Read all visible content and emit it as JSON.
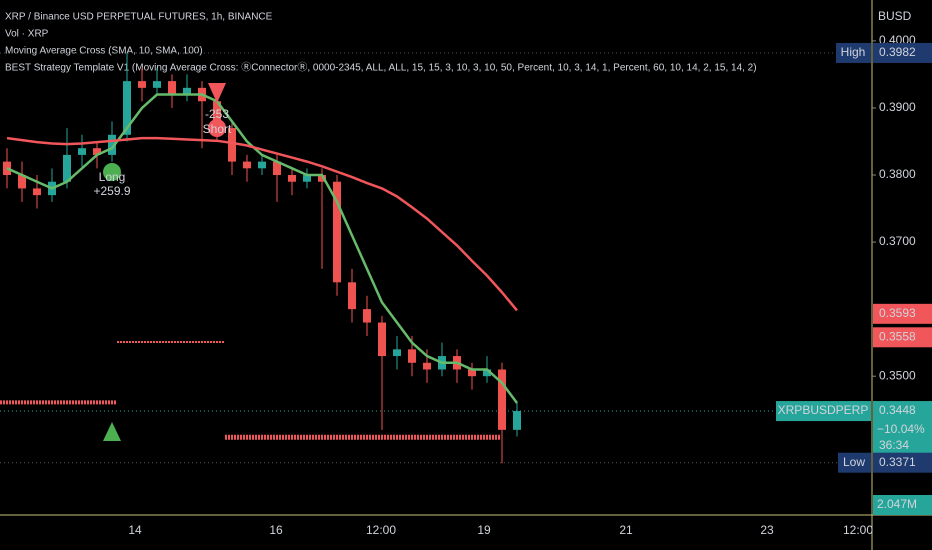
{
  "header": {
    "symbol": "XRP / Binance USD PERPETUAL FUTURES, 1h, BINANCE",
    "volume": "Vol · XRP",
    "ma_study": "Moving Average Cross (SMA, 10, SMA, 100)",
    "strategy": "BEST Strategy Template V1 (Moving Average Cross: ⓇConnectorⓇ, 0000-2345, ALL, ALL, 15, 15, 3, 10, 3, 10, 50, Percent, 10, 3, 14, 1, Percent, 60, 10, 14, 2, 15, 14, 2)"
  },
  "chart_data": {
    "type": "candlestick",
    "currency": "BUSD",
    "candles": [
      [
        0.382,
        0.384,
        0.378,
        0.38
      ],
      [
        0.38,
        0.382,
        0.376,
        0.378
      ],
      [
        0.378,
        0.38,
        0.375,
        0.377
      ],
      [
        0.377,
        0.381,
        0.376,
        0.379
      ],
      [
        0.379,
        0.387,
        0.378,
        0.383
      ],
      [
        0.383,
        0.386,
        0.381,
        0.384
      ],
      [
        0.384,
        0.385,
        0.381,
        0.383
      ],
      [
        0.383,
        0.388,
        0.382,
        0.386
      ],
      [
        0.386,
        0.3982,
        0.385,
        0.394
      ],
      [
        0.394,
        0.396,
        0.391,
        0.393
      ],
      [
        0.393,
        0.396,
        0.392,
        0.394
      ],
      [
        0.394,
        0.395,
        0.39,
        0.392
      ],
      [
        0.392,
        0.395,
        0.391,
        0.393
      ],
      [
        0.393,
        0.394,
        0.384,
        0.391
      ],
      [
        0.391,
        0.392,
        0.385,
        0.387
      ],
      [
        0.387,
        0.388,
        0.38,
        0.382
      ],
      [
        0.382,
        0.383,
        0.379,
        0.381
      ],
      [
        0.381,
        0.383,
        0.38,
        0.382
      ],
      [
        0.382,
        0.383,
        0.376,
        0.38
      ],
      [
        0.38,
        0.381,
        0.377,
        0.379
      ],
      [
        0.379,
        0.381,
        0.378,
        0.38
      ],
      [
        0.38,
        0.381,
        0.366,
        0.379
      ],
      [
        0.379,
        0.38,
        0.362,
        0.364
      ],
      [
        0.364,
        0.366,
        0.358,
        0.36
      ],
      [
        0.36,
        0.362,
        0.356,
        0.358
      ],
      [
        0.358,
        0.359,
        0.342,
        0.353
      ],
      [
        0.353,
        0.356,
        0.351,
        0.354
      ],
      [
        0.354,
        0.356,
        0.35,
        0.352
      ],
      [
        0.352,
        0.354,
        0.349,
        0.351
      ],
      [
        0.351,
        0.355,
        0.35,
        0.353
      ],
      [
        0.353,
        0.354,
        0.349,
        0.351
      ],
      [
        0.351,
        0.352,
        0.348,
        0.35
      ],
      [
        0.35,
        0.353,
        0.349,
        0.351
      ],
      [
        0.351,
        0.352,
        0.337,
        0.342
      ],
      [
        0.342,
        0.346,
        0.341,
        0.3448
      ]
    ],
    "up_color": "#26a69a",
    "down_color": "#ef5350",
    "series": [
      {
        "color": "#66bb6a",
        "values": [
          0.381,
          0.38,
          0.379,
          0.378,
          0.379,
          0.381,
          0.383,
          0.384,
          0.387,
          0.39,
          0.392,
          0.392,
          0.392,
          0.392,
          0.391,
          0.388,
          0.385,
          0.383,
          0.382,
          0.381,
          0.38,
          0.38,
          0.376,
          0.371,
          0.366,
          0.361,
          0.358,
          0.355,
          0.353,
          0.352,
          0.352,
          0.351,
          0.351,
          0.349,
          0.346
        ]
      },
      {
        "color": "#f0565a",
        "values": [
          0.3855,
          0.3852,
          0.3849,
          0.3847,
          0.3846,
          0.3847,
          0.3849,
          0.3851,
          0.3853,
          0.3855,
          0.3855,
          0.3854,
          0.3853,
          0.3852,
          0.3851,
          0.3848,
          0.3844,
          0.3838,
          0.3832,
          0.3826,
          0.382,
          0.3813,
          0.3805,
          0.3797,
          0.3788,
          0.378,
          0.3768,
          0.3752,
          0.3735,
          0.3715,
          0.3695,
          0.3672,
          0.365,
          0.3625,
          0.3598
        ]
      }
    ],
    "levels": [
      0.3461,
      0.3551,
      0.3409
    ],
    "signals": [
      {
        "label": "Long",
        "pnl": "+259.9"
      },
      {
        "label": "Short",
        "pnl": "-253"
      }
    ],
    "ylim": [
      0.3293,
      0.4061
    ],
    "yticks": [
      {
        "value": 0.4,
        "label": "0.4000"
      },
      {
        "value": 0.39,
        "label": "0.3900"
      },
      {
        "value": 0.38,
        "label": "0.3800"
      },
      {
        "value": 0.37,
        "label": "0.3700"
      },
      {
        "value": 0.35,
        "label": "0.3500"
      }
    ],
    "xtick_labels": [
      "14",
      "16",
      "12:00",
      "19",
      "21",
      "23",
      "12:00"
    ],
    "price_labels": {
      "high": {
        "name": "High",
        "value": 0.3982,
        "label": "0.3982"
      },
      "ma": {
        "value": 0.3593,
        "label": "0.3593"
      },
      "level": {
        "value": 0.3558,
        "label": "0.3558"
      },
      "last": {
        "name": "XRPBUSDPERP",
        "value": 0.3448,
        "label": "0.3448",
        "change": "−10.04%",
        "countdown": "36:34"
      },
      "low": {
        "name": "Low",
        "value": 0.3371,
        "label": "0.3371"
      }
    },
    "volume_label": "2.047M"
  }
}
